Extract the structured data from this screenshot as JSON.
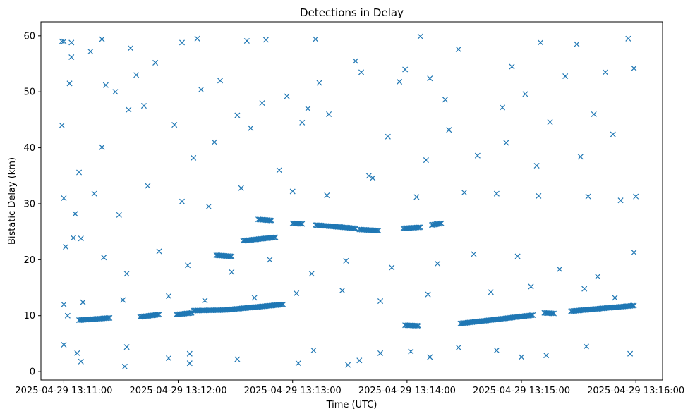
{
  "chart_data": {
    "type": "scatter",
    "title": "Detections in Delay",
    "xlabel": "Time (UTC)",
    "ylabel": "Bistatic Delay (km)",
    "marker": "x",
    "marker_color": "#1f77b4",
    "x_start": "2025-04-29 13:11:00",
    "x_end": "2025-04-29 13:16:00",
    "xlim": [
      "2025-04-29 13:10:48",
      "2025-04-29 13:16:14"
    ],
    "ylim": [
      -1.5,
      62.5
    ],
    "x_ticks": [
      "2025-04-29 13:11:00",
      "2025-04-29 13:12:00",
      "2025-04-29 13:13:00",
      "2025-04-29 13:14:00",
      "2025-04-29 13:15:00",
      "2025-04-29 13:16:00"
    ],
    "y_ticks": [
      0,
      10,
      20,
      30,
      40,
      50,
      60
    ],
    "grid": false,
    "legend": "none",
    "tracks": [
      {
        "t_start": "2025-04-29 13:11:08",
        "t_end": "2025-04-29 13:11:24",
        "y_start": 9.2,
        "y_end": 9.6
      },
      {
        "t_start": "2025-04-29 13:11:40",
        "t_end": "2025-04-29 13:11:50",
        "y_start": 9.8,
        "y_end": 10.2
      },
      {
        "t_start": "2025-04-29 13:11:59",
        "t_end": "2025-04-29 13:12:07",
        "y_start": 10.2,
        "y_end": 10.5
      },
      {
        "t_start": "2025-04-29 13:12:08",
        "t_end": "2025-04-29 13:12:24",
        "y_start": 10.9,
        "y_end": 11.0
      },
      {
        "t_start": "2025-04-29 13:12:24",
        "t_end": "2025-04-29 13:12:55",
        "y_start": 11.0,
        "y_end": 12.0
      },
      {
        "t_start": "2025-04-29 13:12:20",
        "t_end": "2025-04-29 13:12:28",
        "y_start": 20.8,
        "y_end": 20.6
      },
      {
        "t_start": "2025-04-29 13:12:34",
        "t_end": "2025-04-29 13:12:51",
        "y_start": 23.4,
        "y_end": 24.0
      },
      {
        "t_start": "2025-04-29 13:12:42",
        "t_end": "2025-04-29 13:12:49",
        "y_start": 27.2,
        "y_end": 27.0
      },
      {
        "t_start": "2025-04-29 13:13:00",
        "t_end": "2025-04-29 13:13:05",
        "y_start": 26.5,
        "y_end": 26.4
      },
      {
        "t_start": "2025-04-29 13:13:12",
        "t_end": "2025-04-29 13:13:33",
        "y_start": 26.2,
        "y_end": 25.6
      },
      {
        "t_start": "2025-04-29 13:13:35",
        "t_end": "2025-04-29 13:13:45",
        "y_start": 25.4,
        "y_end": 25.2
      },
      {
        "t_start": "2025-04-29 13:13:58",
        "t_end": "2025-04-29 13:14:07",
        "y_start": 25.6,
        "y_end": 25.8
      },
      {
        "t_start": "2025-04-29 13:14:13",
        "t_end": "2025-04-29 13:14:18",
        "y_start": 26.2,
        "y_end": 26.5
      },
      {
        "t_start": "2025-04-29 13:13:59",
        "t_end": "2025-04-29 13:14:06",
        "y_start": 8.3,
        "y_end": 8.2
      },
      {
        "t_start": "2025-04-29 13:14:28",
        "t_end": "2025-04-29 13:14:46",
        "y_start": 8.6,
        "y_end": 9.3
      },
      {
        "t_start": "2025-04-29 13:14:46",
        "t_end": "2025-04-29 13:15:06",
        "y_start": 9.3,
        "y_end": 10.1
      },
      {
        "t_start": "2025-04-29 13:15:12",
        "t_end": "2025-04-29 13:15:17",
        "y_start": 10.5,
        "y_end": 10.4
      },
      {
        "t_start": "2025-04-29 13:15:26",
        "t_end": "2025-04-29 13:15:59",
        "y_start": 10.8,
        "y_end": 11.8
      }
    ],
    "points": [
      [
        "2025-04-29 13:10:59",
        59.0
      ],
      [
        "2025-04-29 13:11:00",
        59.0
      ],
      [
        "2025-04-29 13:11:04",
        58.8
      ],
      [
        "2025-04-29 13:11:14",
        57.2
      ],
      [
        "2025-04-29 13:11:20",
        59.4
      ],
      [
        "2025-04-29 13:11:35",
        57.8
      ],
      [
        "2025-04-29 13:11:48",
        55.2
      ],
      [
        "2025-04-29 13:12:02",
        58.8
      ],
      [
        "2025-04-29 13:12:10",
        59.5
      ],
      [
        "2025-04-29 13:12:36",
        59.1
      ],
      [
        "2025-04-29 13:12:46",
        59.3
      ],
      [
        "2025-04-29 13:13:12",
        59.4
      ],
      [
        "2025-04-29 13:14:07",
        59.9
      ],
      [
        "2025-04-29 13:15:10",
        58.8
      ],
      [
        "2025-04-29 13:15:29",
        58.5
      ],
      [
        "2025-04-29 13:15:56",
        59.5
      ],
      [
        "2025-04-29 13:11:03",
        51.5
      ],
      [
        "2025-04-29 13:11:22",
        51.2
      ],
      [
        "2025-04-29 13:11:38",
        53.0
      ],
      [
        "2025-04-29 13:12:12",
        50.4
      ],
      [
        "2025-04-29 13:12:31",
        45.8
      ],
      [
        "2025-04-29 13:12:57",
        49.2
      ],
      [
        "2025-04-29 13:13:14",
        51.6
      ],
      [
        "2025-04-29 13:13:36",
        53.5
      ],
      [
        "2025-04-29 13:13:56",
        51.8
      ],
      [
        "2025-04-29 13:14:12",
        52.4
      ],
      [
        "2025-04-29 13:14:27",
        57.6
      ],
      [
        "2025-04-29 13:14:55",
        54.5
      ],
      [
        "2025-04-29 13:15:02",
        49.6
      ],
      [
        "2025-04-29 13:15:23",
        52.8
      ],
      [
        "2025-04-29 13:15:44",
        53.5
      ],
      [
        "2025-04-29 13:15:59",
        54.2
      ],
      [
        "2025-04-29 13:10:59",
        44.0
      ],
      [
        "2025-04-29 13:11:08",
        35.6
      ],
      [
        "2025-04-29 13:11:20",
        40.1
      ],
      [
        "2025-04-29 13:11:34",
        46.8
      ],
      [
        "2025-04-29 13:11:58",
        44.1
      ],
      [
        "2025-04-29 13:12:08",
        38.2
      ],
      [
        "2025-04-29 13:12:19",
        41.0
      ],
      [
        "2025-04-29 13:12:38",
        43.5
      ],
      [
        "2025-04-29 13:12:53",
        36.0
      ],
      [
        "2025-04-29 13:13:05",
        44.5
      ],
      [
        "2025-04-29 13:13:19",
        46.0
      ],
      [
        "2025-04-29 13:13:40",
        35.0
      ],
      [
        "2025-04-29 13:13:50",
        42.0
      ],
      [
        "2025-04-29 13:14:10",
        37.8
      ],
      [
        "2025-04-29 13:14:22",
        43.2
      ],
      [
        "2025-04-29 13:14:37",
        38.6
      ],
      [
        "2025-04-29 13:14:52",
        40.9
      ],
      [
        "2025-04-29 13:15:08",
        36.8
      ],
      [
        "2025-04-29 13:15:31",
        38.4
      ],
      [
        "2025-04-29 13:15:48",
        42.4
      ],
      [
        "2025-04-29 13:11:00",
        31.0
      ],
      [
        "2025-04-29 13:11:06",
        28.2
      ],
      [
        "2025-04-29 13:11:16",
        31.8
      ],
      [
        "2025-04-29 13:11:29",
        28.0
      ],
      [
        "2025-04-29 13:11:44",
        33.2
      ],
      [
        "2025-04-29 13:12:02",
        30.4
      ],
      [
        "2025-04-29 13:12:16",
        29.5
      ],
      [
        "2025-04-29 13:12:33",
        32.8
      ],
      [
        "2025-04-29 13:13:00",
        32.2
      ],
      [
        "2025-04-29 13:13:18",
        31.5
      ],
      [
        "2025-04-29 13:13:42",
        34.6
      ],
      [
        "2025-04-29 13:14:05",
        31.2
      ],
      [
        "2025-04-29 13:14:30",
        32.0
      ],
      [
        "2025-04-29 13:14:47",
        31.8
      ],
      [
        "2025-04-29 13:15:09",
        31.4
      ],
      [
        "2025-04-29 13:15:35",
        31.3
      ],
      [
        "2025-04-29 13:15:52",
        30.6
      ],
      [
        "2025-04-29 13:16:00",
        31.3
      ],
      [
        "2025-04-29 13:11:01",
        22.3
      ],
      [
        "2025-04-29 13:11:05",
        23.9
      ],
      [
        "2025-04-29 13:11:09",
        23.8
      ],
      [
        "2025-04-29 13:11:21",
        20.4
      ],
      [
        "2025-04-29 13:11:33",
        17.5
      ],
      [
        "2025-04-29 13:11:50",
        21.5
      ],
      [
        "2025-04-29 13:12:05",
        19.0
      ],
      [
        "2025-04-29 13:12:28",
        17.8
      ],
      [
        "2025-04-29 13:12:48",
        20.0
      ],
      [
        "2025-04-29 13:13:10",
        17.5
      ],
      [
        "2025-04-29 13:13:28",
        19.8
      ],
      [
        "2025-04-29 13:13:52",
        18.6
      ],
      [
        "2025-04-29 13:14:16",
        19.3
      ],
      [
        "2025-04-29 13:14:35",
        21.0
      ],
      [
        "2025-04-29 13:14:58",
        20.6
      ],
      [
        "2025-04-29 13:15:20",
        18.3
      ],
      [
        "2025-04-29 13:15:40",
        17.0
      ],
      [
        "2025-04-29 13:15:59",
        21.3
      ],
      [
        "2025-04-29 13:11:00",
        12.0
      ],
      [
        "2025-04-29 13:11:02",
        10.0
      ],
      [
        "2025-04-29 13:11:10",
        12.4
      ],
      [
        "2025-04-29 13:11:31",
        12.8
      ],
      [
        "2025-04-29 13:11:55",
        13.5
      ],
      [
        "2025-04-29 13:12:14",
        12.7
      ],
      [
        "2025-04-29 13:12:40",
        13.2
      ],
      [
        "2025-04-29 13:13:02",
        14.0
      ],
      [
        "2025-04-29 13:13:26",
        14.5
      ],
      [
        "2025-04-29 13:13:46",
        12.6
      ],
      [
        "2025-04-29 13:14:11",
        13.8
      ],
      [
        "2025-04-29 13:14:44",
        14.2
      ],
      [
        "2025-04-29 13:15:05",
        15.2
      ],
      [
        "2025-04-29 13:15:33",
        14.8
      ],
      [
        "2025-04-29 13:15:49",
        13.2
      ],
      [
        "2025-04-29 13:11:00",
        4.8
      ],
      [
        "2025-04-29 13:11:07",
        3.3
      ],
      [
        "2025-04-29 13:11:09",
        1.8
      ],
      [
        "2025-04-29 13:11:32",
        0.9
      ],
      [
        "2025-04-29 13:11:33",
        4.4
      ],
      [
        "2025-04-29 13:11:55",
        2.4
      ],
      [
        "2025-04-29 13:12:06",
        1.5
      ],
      [
        "2025-04-29 13:12:06",
        3.2
      ],
      [
        "2025-04-29 13:12:31",
        2.2
      ],
      [
        "2025-04-29 13:13:03",
        1.5
      ],
      [
        "2025-04-29 13:13:11",
        3.8
      ],
      [
        "2025-04-29 13:13:29",
        1.2
      ],
      [
        "2025-04-29 13:13:35",
        2.0
      ],
      [
        "2025-04-29 13:13:46",
        3.3
      ],
      [
        "2025-04-29 13:14:02",
        3.6
      ],
      [
        "2025-04-29 13:14:12",
        2.6
      ],
      [
        "2025-04-29 13:14:27",
        4.3
      ],
      [
        "2025-04-29 13:14:47",
        3.8
      ],
      [
        "2025-04-29 13:15:00",
        2.6
      ],
      [
        "2025-04-29 13:15:13",
        2.9
      ],
      [
        "2025-04-29 13:15:34",
        4.5
      ],
      [
        "2025-04-29 13:15:57",
        3.2
      ],
      [
        "2025-04-29 13:11:04",
        56.2
      ],
      [
        "2025-04-29 13:11:27",
        50.0
      ],
      [
        "2025-04-29 13:11:42",
        47.5
      ],
      [
        "2025-04-29 13:12:22",
        52.0
      ],
      [
        "2025-04-29 13:12:44",
        48.0
      ],
      [
        "2025-04-29 13:13:08",
        47.0
      ],
      [
        "2025-04-29 13:13:33",
        55.5
      ],
      [
        "2025-04-29 13:13:59",
        54.0
      ],
      [
        "2025-04-29 13:14:20",
        48.6
      ],
      [
        "2025-04-29 13:14:50",
        47.2
      ],
      [
        "2025-04-29 13:15:15",
        44.6
      ],
      [
        "2025-04-29 13:15:38",
        46.0
      ]
    ]
  }
}
